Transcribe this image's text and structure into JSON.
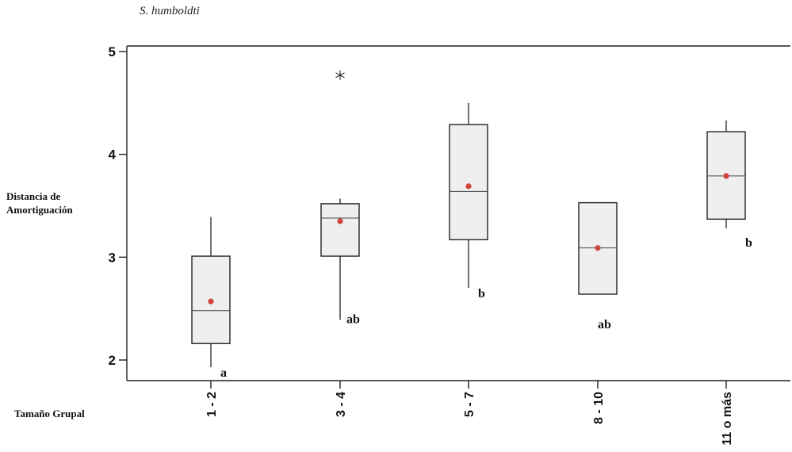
{
  "chart_data": {
    "type": "box",
    "title": "S. humboldti",
    "ylabel_line1": "Distancia de",
    "ylabel_line2": "Amortiguación",
    "xlabel": "Tamaño Grupal",
    "ylim": [
      1.95,
      5.05
    ],
    "yticks": [
      2,
      3,
      4,
      5
    ],
    "grid": false,
    "colors": {
      "box_fill": "#efefef",
      "mean_marker": "#d0453a",
      "stroke": "#222222"
    },
    "categories": [
      "1 - 2",
      "3 - 4",
      "5 - 7",
      "8 - 10",
      "11 o más"
    ],
    "boxes": [
      {
        "category": "1 - 2",
        "whisker_low": 1.93,
        "q1": 2.16,
        "median": 2.48,
        "q3": 3.01,
        "whisker_high": 3.39,
        "mean": 2.57,
        "outliers": [],
        "group_letter": "a"
      },
      {
        "category": "3 - 4",
        "whisker_low": 2.39,
        "q1": 3.01,
        "median": 3.38,
        "q3": 3.52,
        "whisker_high": 3.57,
        "mean": 3.35,
        "outliers": [
          4.77
        ],
        "group_letter": "ab"
      },
      {
        "category": "5 - 7",
        "whisker_low": 2.7,
        "q1": 3.17,
        "median": 3.64,
        "q3": 4.29,
        "whisker_high": 4.5,
        "mean": 3.69,
        "outliers": [],
        "group_letter": "b"
      },
      {
        "category": "8 - 10",
        "whisker_low": 2.64,
        "q1": 2.64,
        "median": 3.09,
        "q3": 3.53,
        "whisker_high": 3.53,
        "mean": 3.09,
        "outliers": [],
        "group_letter": "ab"
      },
      {
        "category": "11 o más",
        "whisker_low": 3.28,
        "q1": 3.37,
        "median": 3.79,
        "q3": 4.22,
        "whisker_high": 4.33,
        "mean": 3.79,
        "outliers": [],
        "group_letter": "b"
      }
    ]
  }
}
